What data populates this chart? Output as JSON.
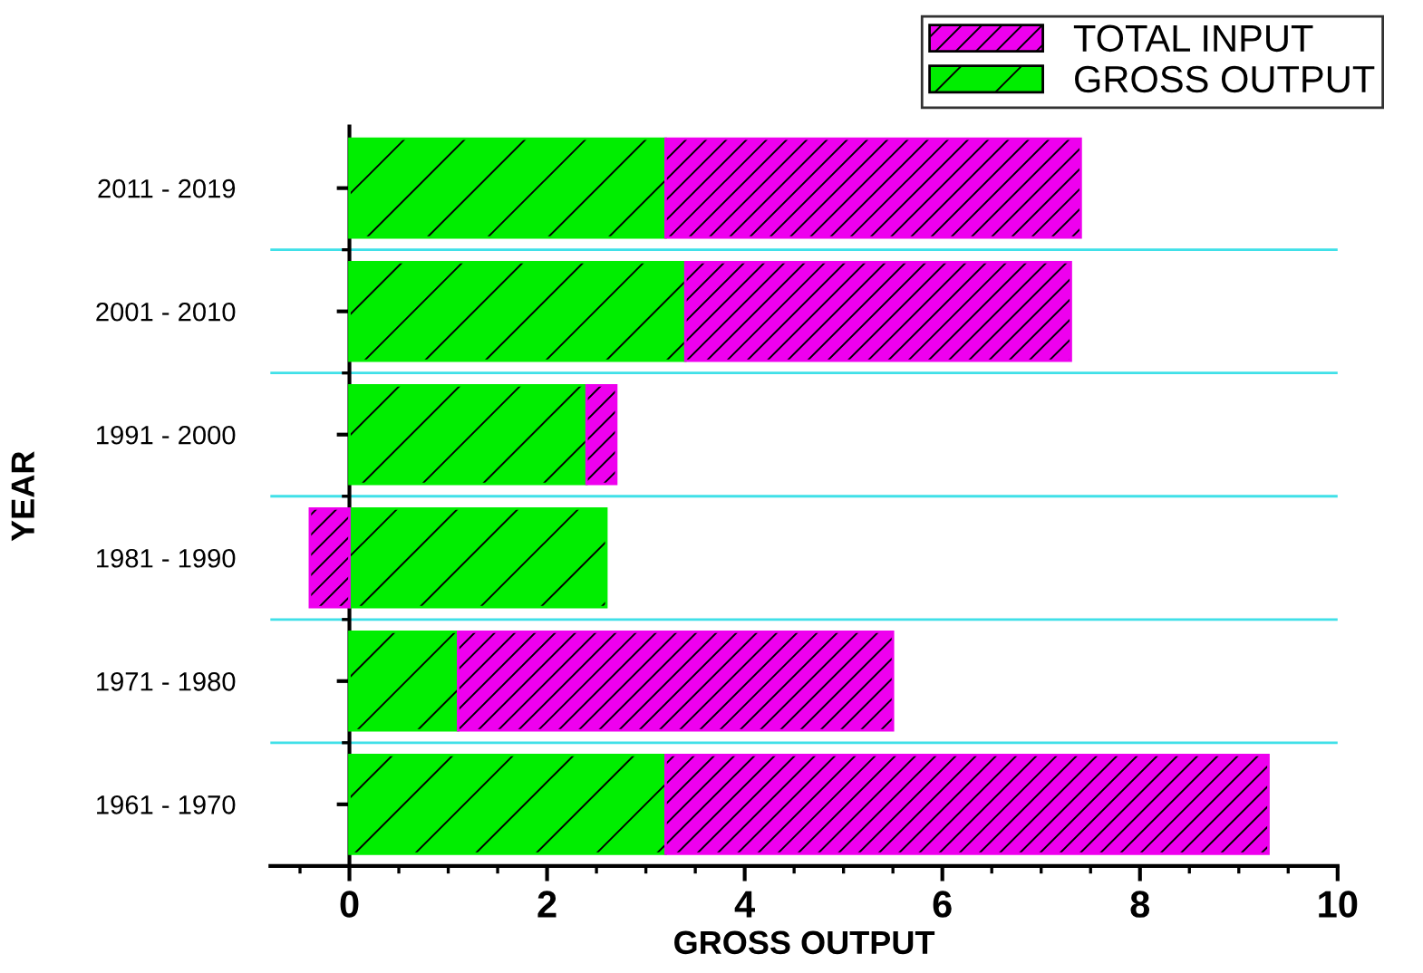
{
  "chart_data": {
    "type": "bar",
    "orientation": "horizontal",
    "stacked": true,
    "xlabel": "GROSS OUTPUT",
    "ylabel": "YEAR",
    "categories": [
      "2011 - 2019",
      "2001 - 2010",
      "1991 - 2000",
      "1981 - 1990",
      "1971 - 1980",
      "1961 - 1970"
    ],
    "series": [
      {
        "name": "GROSS OUTPUT",
        "color": "#00ee00",
        "values": [
          3.2,
          3.4,
          2.4,
          2.6,
          1.1,
          3.2
        ]
      },
      {
        "name": "TOTAL INPUT",
        "color": "#ee00ee",
        "values": [
          4.2,
          3.9,
          0.3,
          -0.4,
          4.4,
          6.1
        ]
      }
    ],
    "xlim": [
      -0.8,
      10
    ],
    "xticks": [
      0,
      2,
      4,
      6,
      8,
      10
    ],
    "grid": "y",
    "legend": "top right"
  }
}
